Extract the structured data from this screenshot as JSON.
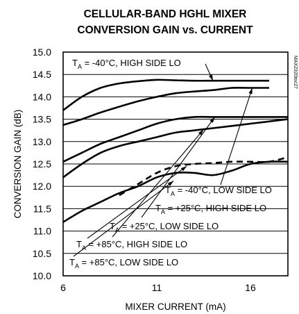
{
  "chart_data": {
    "type": "line",
    "title": [
      "CELLULAR-BAND HGHL MIXER",
      "CONVERSION GAIN vs. CURRENT"
    ],
    "xlabel": "MIXER CURRENT (mA)",
    "ylabel": "CONVERSION GAIN (dB)",
    "xlim": [
      6,
      18
    ],
    "ylim": [
      10.0,
      15.0
    ],
    "xticks": [
      "6",
      "11",
      "16"
    ],
    "yticks": [
      "10.0",
      "10.5",
      "11.0",
      "11.5",
      "12.0",
      "12.5",
      "13.0",
      "13.5",
      "14.0",
      "14.5",
      "15.0"
    ],
    "grid": true,
    "figure_code": "MAX2320toc27",
    "series": [
      {
        "name": "TA = -40°C, HIGH SIDE LO",
        "label": {
          "main": "T",
          "sub": "A",
          "rest": " = -40°C, HIGH SIDE LO"
        },
        "style": "solid",
        "x": [
          6,
          7,
          8,
          9,
          10,
          11,
          12,
          13,
          14,
          15,
          16,
          17
        ],
        "y": [
          13.7,
          14.0,
          14.2,
          14.3,
          14.35,
          14.38,
          14.37,
          14.36,
          14.36,
          14.36,
          14.36,
          14.36
        ]
      },
      {
        "name": "TA = -40°C, LOW SIDE LO",
        "label": {
          "main": "T",
          "sub": "A",
          "rest": " = -40°C, LOW SIDE LO"
        },
        "style": "solid",
        "x": [
          6,
          7,
          8,
          9,
          10,
          11,
          12,
          13,
          14,
          15,
          16,
          17
        ],
        "y": [
          13.37,
          13.5,
          13.65,
          13.78,
          13.9,
          14.0,
          14.08,
          14.12,
          14.15,
          14.2,
          14.2,
          14.2
        ]
      },
      {
        "name": "TA = +25°C, HIGH SIDE LO",
        "label": {
          "main": "T",
          "sub": "A",
          "rest": " = +25°C, HIGH SIDE LO"
        },
        "style": "solid",
        "x": [
          6,
          7,
          8,
          9,
          10,
          11,
          12,
          13,
          14,
          15,
          16,
          17,
          18
        ],
        "y": [
          12.55,
          12.75,
          12.95,
          13.1,
          13.25,
          13.4,
          13.5,
          13.55,
          13.55,
          13.55,
          13.55,
          13.55,
          13.55
        ]
      },
      {
        "name": "TA = +25°C, LOW SIDE LO",
        "label": {
          "main": "T",
          "sub": "A",
          "rest": " = +25°C, LOW SIDE LO"
        },
        "style": "solid",
        "x": [
          6,
          7,
          8,
          9,
          10,
          11,
          12,
          13,
          14,
          15,
          16,
          17,
          18
        ],
        "y": [
          12.2,
          12.5,
          12.75,
          12.9,
          13.0,
          13.1,
          13.2,
          13.25,
          13.3,
          13.35,
          13.4,
          13.45,
          13.5
        ]
      },
      {
        "name": "TA = +85°C, HIGH SIDE LO",
        "label": {
          "main": "T",
          "sub": "A",
          "rest": " = +85°C, HIGH SIDE LO"
        },
        "style": "dashed",
        "x": [
          9,
          10,
          11,
          12,
          13,
          14,
          15,
          16,
          17,
          18
        ],
        "y": [
          11.8,
          12.05,
          12.3,
          12.45,
          12.5,
          12.52,
          12.55,
          12.55,
          12.55,
          12.65
        ]
      },
      {
        "name": "TA = +85°C, LOW SIDE LO",
        "label": {
          "main": "T",
          "sub": "A",
          "rest": " = +85°C, LOW SIDE LO"
        },
        "style": "solid",
        "x": [
          6,
          7,
          8,
          9,
          10,
          11,
          12,
          13,
          14,
          15,
          16,
          17,
          18
        ],
        "y": [
          11.2,
          11.45,
          11.65,
          11.85,
          12.0,
          12.2,
          12.3,
          12.3,
          12.25,
          12.35,
          12.5,
          12.55,
          12.55
        ]
      }
    ]
  }
}
